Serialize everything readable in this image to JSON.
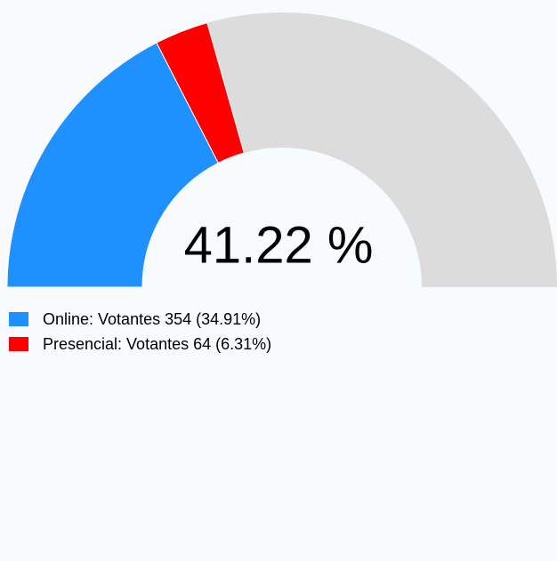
{
  "chart_data": {
    "type": "half-donut",
    "categories": [
      "Online",
      "Presencial"
    ],
    "values": [
      34.91,
      6.31
    ],
    "colors": [
      "#1e90ff",
      "#ff0000"
    ],
    "track_color": "#dcdcdc",
    "legend_labels": [
      "Online: Votantes 354 (34.91%)",
      "Presencial: Votantes 64 (6.31%)"
    ],
    "center_label": "41.22 %"
  }
}
